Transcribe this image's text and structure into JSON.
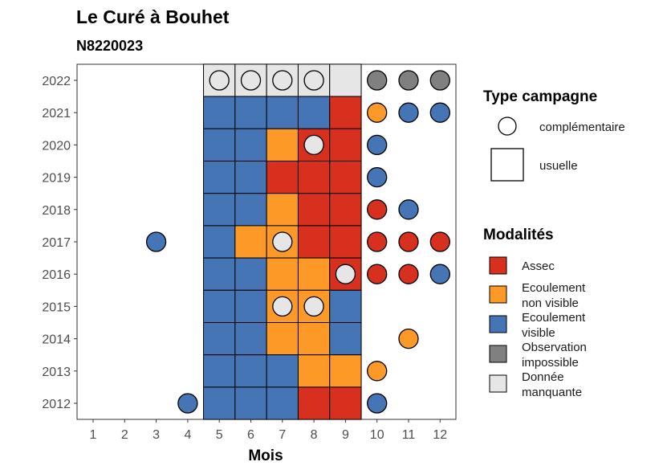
{
  "chart_data": {
    "type": "heatmap",
    "title": "Le Curé à Bouhet",
    "subtitle": "N8220023",
    "xlabel": "Mois",
    "ylabel": "",
    "x_ticks": [
      "1",
      "2",
      "3",
      "4",
      "5",
      "6",
      "7",
      "8",
      "9",
      "10",
      "11",
      "12"
    ],
    "y_ticks": [
      "2012",
      "2013",
      "2014",
      "2015",
      "2016",
      "2017",
      "2018",
      "2019",
      "2020",
      "2021",
      "2022"
    ],
    "grid": false,
    "colors": {
      "Assec": "#d7301f",
      "Ecoulement non visible": "#fd9a27",
      "Ecoulement visible": "#4575b4",
      "Observation impossible": "#808080",
      "Donnée manquante": "#e6e6e6"
    },
    "legend_type": {
      "title": "Type campagne",
      "placement": "right",
      "items": [
        {
          "shape": "circle",
          "label": "complémentaire"
        },
        {
          "shape": "square",
          "label": "usuelle"
        }
      ]
    },
    "legend_modalites": {
      "title": "Modalités",
      "placement": "right",
      "items": [
        {
          "key": "Assec",
          "lines": [
            "Assec"
          ]
        },
        {
          "key": "Ecoulement non visible",
          "lines": [
            "Ecoulement",
            "non visible"
          ]
        },
        {
          "key": "Ecoulement visible",
          "lines": [
            "Ecoulement",
            "visible"
          ]
        },
        {
          "key": "Observation impossible",
          "lines": [
            "Observation",
            "impossible"
          ]
        },
        {
          "key": "Donnée manquante",
          "lines": [
            "Donnée",
            "manquante"
          ]
        }
      ]
    },
    "usuelle_grid": [
      {
        "year": 2022,
        "values": [
          "Donnée manquante",
          "Donnée manquante",
          "Donnée manquante",
          "Donnée manquante",
          "Donnée manquante"
        ]
      },
      {
        "year": 2021,
        "values": [
          "Ecoulement visible",
          "Ecoulement visible",
          "Ecoulement visible",
          "Ecoulement visible",
          "Assec"
        ]
      },
      {
        "year": 2020,
        "values": [
          "Ecoulement visible",
          "Ecoulement visible",
          "Ecoulement non visible",
          "Assec",
          "Assec"
        ]
      },
      {
        "year": 2019,
        "values": [
          "Ecoulement visible",
          "Ecoulement visible",
          "Assec",
          "Assec",
          "Assec"
        ]
      },
      {
        "year": 2018,
        "values": [
          "Ecoulement visible",
          "Ecoulement visible",
          "Ecoulement non visible",
          "Assec",
          "Assec"
        ]
      },
      {
        "year": 2017,
        "values": [
          "Ecoulement visible",
          "Ecoulement non visible",
          "Ecoulement non visible",
          "Assec",
          "Assec"
        ]
      },
      {
        "year": 2016,
        "values": [
          "Ecoulement visible",
          "Ecoulement visible",
          "Ecoulement non visible",
          "Ecoulement non visible",
          "Assec"
        ]
      },
      {
        "year": 2015,
        "values": [
          "Ecoulement visible",
          "Ecoulement visible",
          "Ecoulement non visible",
          "Ecoulement non visible",
          "Ecoulement visible"
        ]
      },
      {
        "year": 2014,
        "values": [
          "Ecoulement visible",
          "Ecoulement visible",
          "Ecoulement non visible",
          "Ecoulement non visible",
          "Ecoulement visible"
        ]
      },
      {
        "year": 2013,
        "values": [
          "Ecoulement visible",
          "Ecoulement visible",
          "Ecoulement visible",
          "Ecoulement non visible",
          "Ecoulement non visible"
        ]
      },
      {
        "year": 2012,
        "values": [
          "Ecoulement visible",
          "Ecoulement visible",
          "Ecoulement visible",
          "Assec",
          "Assec"
        ]
      }
    ],
    "usuelle_months": [
      5,
      6,
      7,
      8,
      9
    ],
    "complementaire": [
      {
        "year": 2022,
        "month": 5,
        "value": "Donnée manquante"
      },
      {
        "year": 2022,
        "month": 6,
        "value": "Donnée manquante"
      },
      {
        "year": 2022,
        "month": 7,
        "value": "Donnée manquante"
      },
      {
        "year": 2022,
        "month": 8,
        "value": "Donnée manquante"
      },
      {
        "year": 2022,
        "month": 10,
        "value": "Observation impossible"
      },
      {
        "year": 2022,
        "month": 11,
        "value": "Observation impossible"
      },
      {
        "year": 2022,
        "month": 12,
        "value": "Observation impossible"
      },
      {
        "year": 2021,
        "month": 10,
        "value": "Ecoulement non visible"
      },
      {
        "year": 2021,
        "month": 11,
        "value": "Ecoulement visible"
      },
      {
        "year": 2021,
        "month": 12,
        "value": "Ecoulement visible"
      },
      {
        "year": 2020,
        "month": 8,
        "value": "Donnée manquante"
      },
      {
        "year": 2020,
        "month": 10,
        "value": "Ecoulement visible"
      },
      {
        "year": 2019,
        "month": 10,
        "value": "Ecoulement visible"
      },
      {
        "year": 2018,
        "month": 10,
        "value": "Assec"
      },
      {
        "year": 2018,
        "month": 11,
        "value": "Ecoulement visible"
      },
      {
        "year": 2017,
        "month": 3,
        "value": "Ecoulement visible"
      },
      {
        "year": 2017,
        "month": 7,
        "value": "Donnée manquante"
      },
      {
        "year": 2017,
        "month": 10,
        "value": "Assec"
      },
      {
        "year": 2017,
        "month": 11,
        "value": "Assec"
      },
      {
        "year": 2017,
        "month": 12,
        "value": "Assec"
      },
      {
        "year": 2016,
        "month": 9,
        "value": "Donnée manquante"
      },
      {
        "year": 2016,
        "month": 10,
        "value": "Assec"
      },
      {
        "year": 2016,
        "month": 11,
        "value": "Assec"
      },
      {
        "year": 2016,
        "month": 12,
        "value": "Ecoulement visible"
      },
      {
        "year": 2015,
        "month": 7,
        "value": "Donnée manquante"
      },
      {
        "year": 2015,
        "month": 8,
        "value": "Donnée manquante"
      },
      {
        "year": 2014,
        "month": 11,
        "value": "Ecoulement non visible"
      },
      {
        "year": 2013,
        "month": 10,
        "value": "Ecoulement non visible"
      },
      {
        "year": 2012,
        "month": 4,
        "value": "Ecoulement visible"
      },
      {
        "year": 2012,
        "month": 10,
        "value": "Ecoulement visible"
      }
    ]
  }
}
